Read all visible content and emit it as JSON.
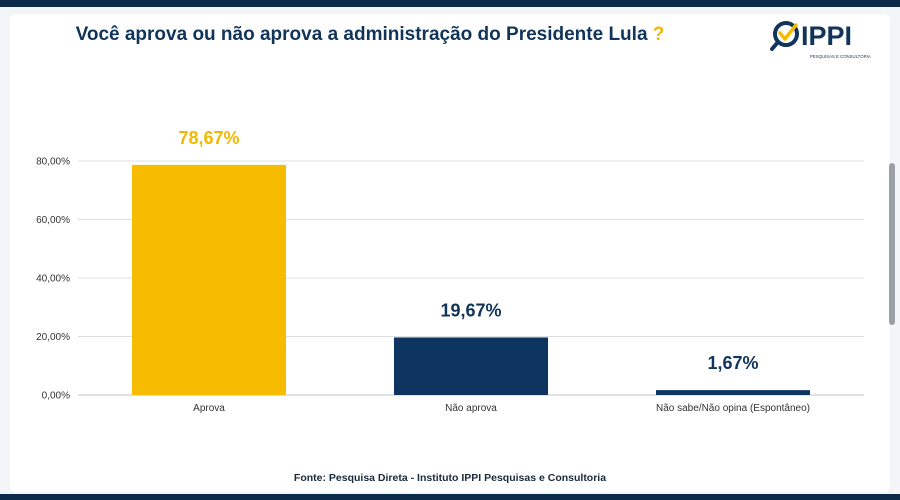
{
  "header": {
    "title": "Você aprova ou não aprova a administração do Presidente Lula",
    "title_mark": "?"
  },
  "logo": {
    "brand": "IPPI",
    "tagline": "PESQUISAS E CONSULTORIA"
  },
  "colors": {
    "navy": "#0e3560",
    "gold": "#f7bc00",
    "title": "#10345a"
  },
  "footer": {
    "source": "Fonte: Pesquisa Direta - Instituto IPPI Pesquisas e Consultoria"
  },
  "chart_data": {
    "type": "bar",
    "categories": [
      "Aprova",
      "Não aprova",
      "Não sabe/Não opina (Espontâneo)"
    ],
    "values": [
      78.67,
      19.67,
      1.67
    ],
    "data_labels": [
      "78,67%",
      "19,67%",
      "1,67%"
    ],
    "bar_colors": [
      "#f7bc00",
      "#0e3560",
      "#0e3560"
    ],
    "label_colors": [
      "#f2b800",
      "#10345a",
      "#10345a"
    ],
    "ylim": [
      0,
      80
    ],
    "yticks": [
      0,
      20,
      40,
      60,
      80
    ],
    "ytick_labels": [
      "0,00%",
      "20,00%",
      "40,00%",
      "60,00%",
      "80,00%"
    ],
    "grid": true,
    "legend": "none"
  }
}
